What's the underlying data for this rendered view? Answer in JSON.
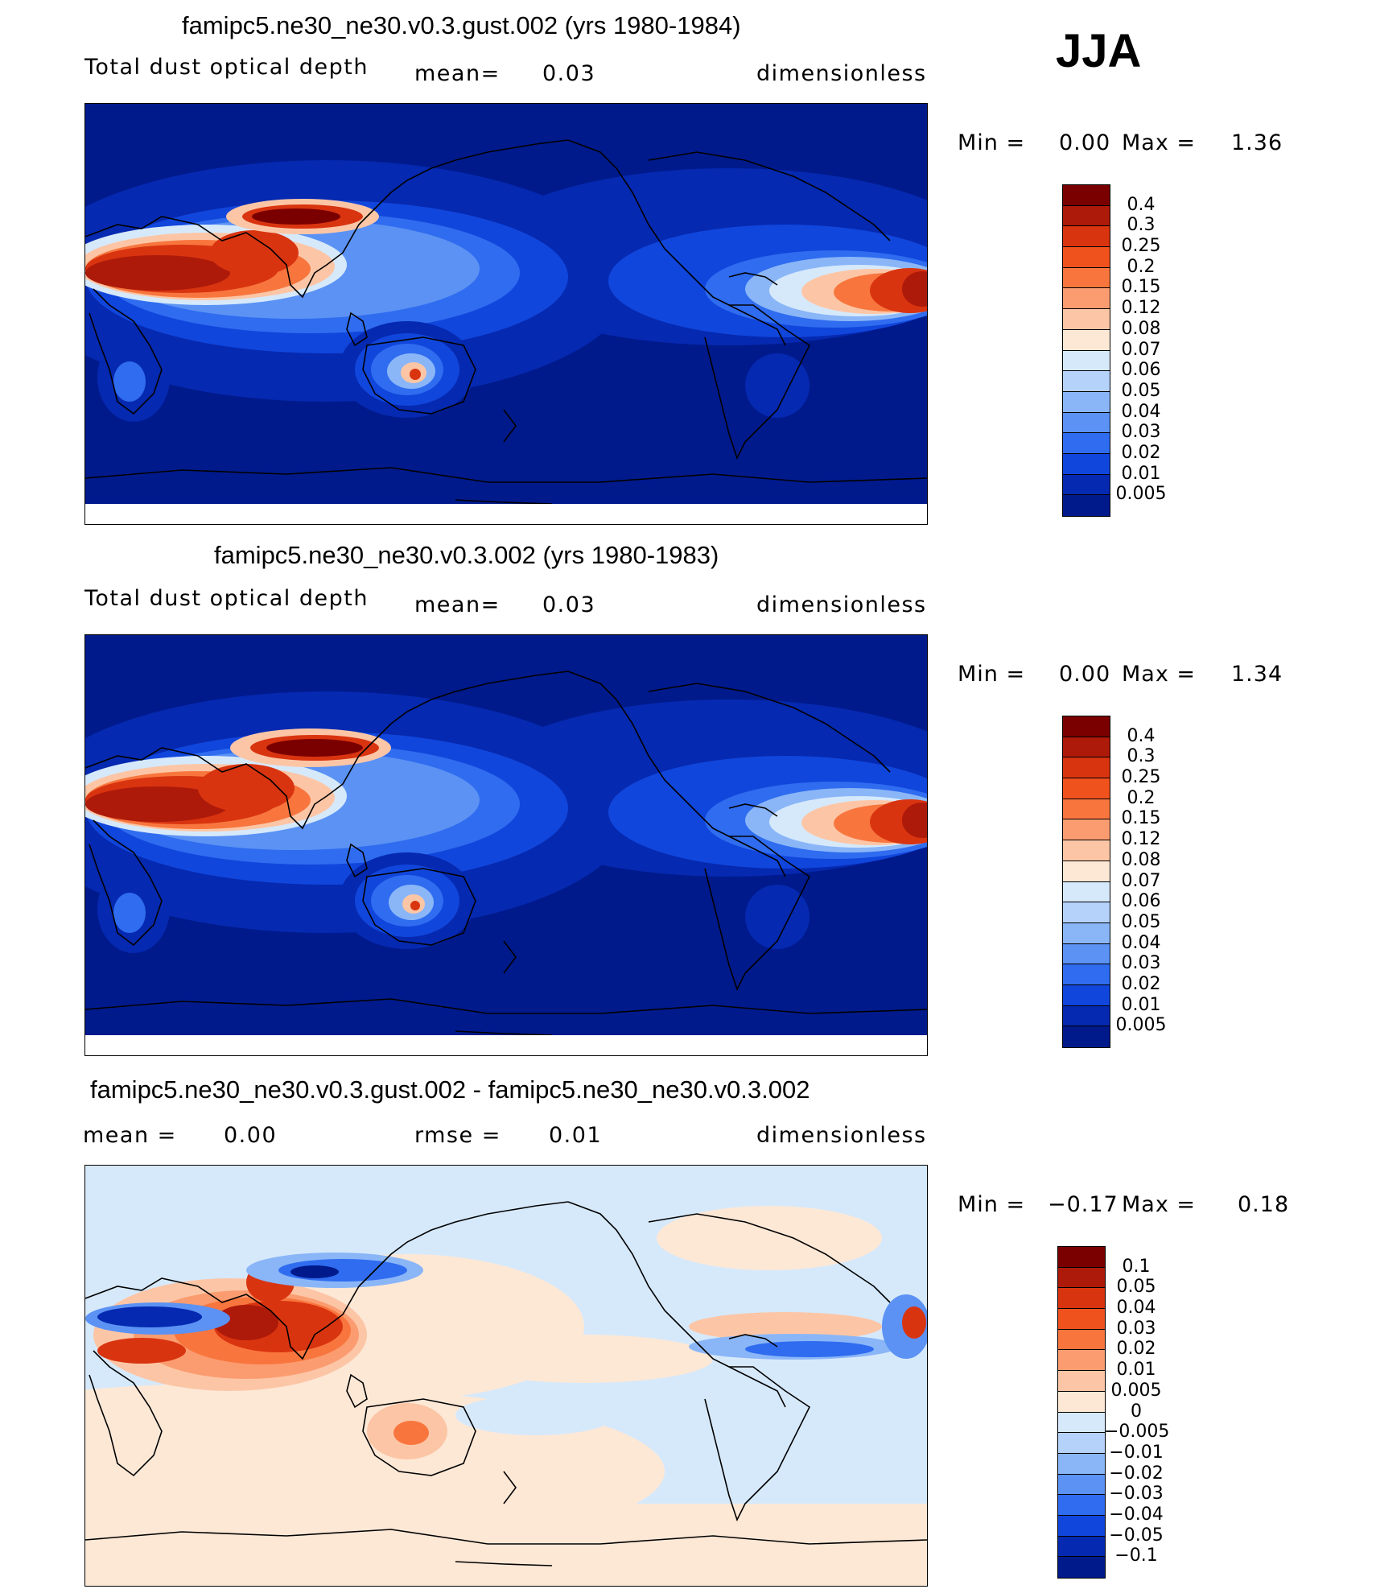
{
  "season": "JJA",
  "panels": [
    {
      "title": "famipc5.ne30_ne30.v0.3.gust.002 (yrs 1980-1984)",
      "subtitle_left": "Total dust optical depth",
      "subtitle_mid_label": "mean=",
      "subtitle_mid_value": "0.03",
      "units": "dimensionless",
      "min_label": "Min =",
      "min_value": "0.00",
      "max_label": "Max =",
      "max_value": "1.36",
      "colorbar_labels": [
        "0.4",
        "0.3",
        "0.25",
        "0.2",
        "0.15",
        "0.12",
        "0.08",
        "0.07",
        "0.06",
        "0.05",
        "0.04",
        "0.03",
        "0.02",
        "0.01",
        "0.005"
      ]
    },
    {
      "title": "famipc5.ne30_ne30.v0.3.002 (yrs 1980-1983)",
      "subtitle_left": "Total dust optical depth",
      "subtitle_mid_label": "mean=",
      "subtitle_mid_value": "0.03",
      "units": "dimensionless",
      "min_label": "Min =",
      "min_value": "0.00",
      "max_label": "Max =",
      "max_value": "1.34",
      "colorbar_labels": [
        "0.4",
        "0.3",
        "0.25",
        "0.2",
        "0.15",
        "0.12",
        "0.08",
        "0.07",
        "0.06",
        "0.05",
        "0.04",
        "0.03",
        "0.02",
        "0.01",
        "0.005"
      ]
    },
    {
      "title": "famipc5.ne30_ne30.v0.3.gust.002 - famipc5.ne30_ne30.v0.3.002",
      "subtitle_left_label": "mean =",
      "subtitle_left_value": "0.00",
      "subtitle_mid_label": "rmse =",
      "subtitle_mid_value": "0.01",
      "units": "dimensionless",
      "min_label": "Min =",
      "min_value": "−0.17",
      "max_label": "Max =",
      "max_value": "0.18",
      "colorbar_labels": [
        "0.1",
        "0.05",
        "0.04",
        "0.03",
        "0.02",
        "0.01",
        "0.005",
        "0",
        "−0.005",
        "−0.01",
        "−0.02",
        "−0.03",
        "−0.04",
        "−0.05",
        "−0.1"
      ]
    }
  ],
  "colors": {
    "abs_scale": [
      "#7a0000",
      "#ad1a0a",
      "#d93410",
      "#f0521e",
      "#f8763e",
      "#fb9c70",
      "#fcc6a6",
      "#fde8d6",
      "#d6e9fb",
      "#b4d2fa",
      "#8ab6f8",
      "#5b92f4",
      "#2f6cef",
      "#1146dc",
      "#0529b0",
      "#001a8c"
    ],
    "diff_scale": [
      "#7a0000",
      "#ad1a0a",
      "#d93410",
      "#f0521e",
      "#f8763e",
      "#fb9c70",
      "#fcc6a6",
      "#fde8d6",
      "#d6e9fb",
      "#b4d2fa",
      "#8ab6f8",
      "#5b92f4",
      "#2f6cef",
      "#1146dc",
      "#0529b0",
      "#001a8c"
    ]
  }
}
